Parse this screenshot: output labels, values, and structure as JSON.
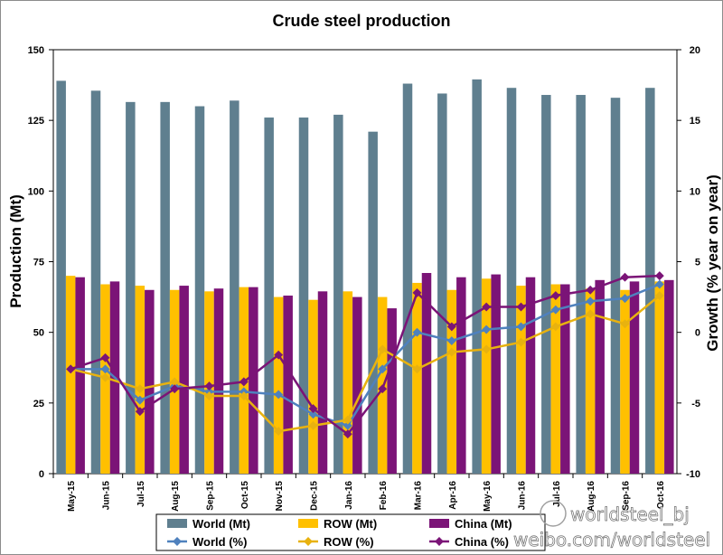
{
  "chart_data": {
    "type": "bar",
    "title": "Crude steel production",
    "ylabel": "Production (Mt)",
    "y2label": "Growth (% year on year)",
    "ylim": [
      0,
      150
    ],
    "y2lim": [
      -10,
      20
    ],
    "yticks": [
      "0",
      "25",
      "50",
      "75",
      "100",
      "125",
      "150"
    ],
    "y2ticks": [
      "-10",
      "-5",
      "0",
      "5",
      "10",
      "15",
      "20"
    ],
    "categories": [
      "May-15",
      "Jun-15",
      "Jul-15",
      "Aug-15",
      "Sep-15",
      "Oct-15",
      "Nov-15",
      "Dec-15",
      "Jan-16",
      "Feb-16",
      "Mar-16",
      "Apr-16",
      "May-16",
      "Jun-16",
      "Jul-16",
      "Aug-16",
      "Sep-16",
      "Oct-16"
    ],
    "bar_series": [
      {
        "name": "World (Mt)",
        "color": "#5f7f8f",
        "values": [
          139,
          135.5,
          131.5,
          131.5,
          130,
          132,
          126,
          126,
          127,
          121,
          138,
          134.5,
          139.5,
          136.5,
          134,
          134,
          133,
          136.5
        ]
      },
      {
        "name": "ROW (Mt)",
        "color": "#ffc000",
        "values": [
          70,
          67,
          66.5,
          65,
          64.5,
          66,
          62.5,
          61.5,
          64.5,
          62.5,
          67.5,
          65,
          69,
          66.5,
          67,
          65.5,
          65,
          68
        ]
      },
      {
        "name": "China (Mt)",
        "color": "#7b1477",
        "values": [
          69.5,
          68,
          65,
          66.5,
          65.5,
          66,
          63,
          64.5,
          62.5,
          58.5,
          71,
          69.5,
          70.5,
          69.5,
          67,
          68.5,
          68,
          68.5
        ]
      }
    ],
    "line_series": [
      {
        "name": "World (%)",
        "color": "#4f81bd",
        "values": [
          -2.6,
          -2.6,
          -4.8,
          -3.8,
          -4.2,
          -4.2,
          -4.4,
          -5.8,
          -6.6,
          -2.6,
          0,
          -0.6,
          0.2,
          0.4,
          1.6,
          2.2,
          2.4,
          3.4
        ]
      },
      {
        "name": "ROW (%)",
        "color": "#e8b20f",
        "values": [
          -2.6,
          -3.2,
          -4.0,
          -3.5,
          -4.5,
          -4.5,
          -7.0,
          -6.6,
          -6.2,
          -1.2,
          -2.6,
          -1.4,
          -1.2,
          -0.7,
          0.4,
          1.3,
          0.6,
          2.6
        ]
      },
      {
        "name": "China (%)",
        "color": "#7b1477",
        "values": [
          -2.6,
          -1.8,
          -5.6,
          -4.0,
          -3.8,
          -3.5,
          -1.6,
          -5.4,
          -7.2,
          -4.0,
          2.8,
          0.4,
          1.8,
          1.8,
          2.6,
          3.0,
          3.9,
          4.0
        ]
      }
    ],
    "legend_position": "bottom",
    "grid": false
  },
  "watermark": {
    "brand": "worldsteel_bj",
    "url": "weibo.com/worldsteel"
  }
}
